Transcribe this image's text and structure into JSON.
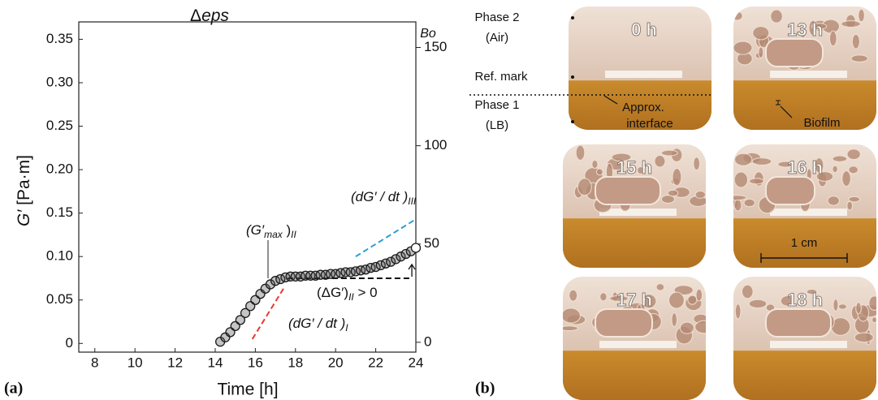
{
  "chart_data": {
    "type": "scatter",
    "title": [
      "Δ",
      "eps"
    ],
    "x_label": "Time [h]",
    "y_label": [
      "G′",
      " [Pa·m]"
    ],
    "y2_label": "Bo",
    "panel_label": "(a)",
    "xlim": [
      7.2,
      24
    ],
    "xticks": [
      8,
      10,
      12,
      14,
      16,
      18,
      20,
      22,
      24
    ],
    "ylim": [
      -0.01,
      0.37
    ],
    "yticks": [
      0,
      0.05,
      {
        "value": 0.1,
        "label": "0.10"
      },
      0.15,
      {
        "value": 0.2,
        "label": "0.20"
      },
      0.25,
      {
        "value": 0.3,
        "label": "0.30"
      },
      0.35
    ],
    "y2lim": [
      -5,
      163
    ],
    "y2ticks": [
      0,
      50,
      100,
      150
    ],
    "color": "#1a1a1a",
    "x": [
      14.25,
      14.5,
      14.75,
      15,
      15.25,
      15.5,
      15.75,
      16,
      16.25,
      16.5,
      16.75,
      17,
      17.25,
      17.5,
      17.75,
      18,
      18.25,
      18.5,
      18.75,
      19,
      19.25,
      19.5,
      19.75,
      20,
      20.25,
      20.5,
      20.75,
      21,
      21.25,
      21.5,
      21.75,
      22,
      22.25,
      22.5,
      22.75,
      23,
      23.25,
      23.5,
      23.75,
      24
    ],
    "values": [
      0.002,
      0.007,
      0.013,
      0.02,
      0.027,
      0.035,
      0.043,
      0.05,
      0.057,
      0.063,
      0.068,
      0.072,
      0.074,
      0.076,
      0.077,
      0.077,
      0.077,
      0.078,
      0.078,
      0.078,
      0.079,
      0.079,
      0.08,
      0.08,
      0.081,
      0.082,
      0.082,
      0.083,
      0.084,
      0.085,
      0.087,
      0.088,
      0.09,
      0.092,
      0.094,
      0.097,
      0.1,
      0.103,
      0.106,
      0.11
    ],
    "guides": [
      {
        "x": [
          15.85,
          17.4
        ],
        "y": [
          0.005,
          0.063
        ],
        "color": "#e8382b"
      },
      {
        "x": [
          21,
          24
        ],
        "y": [
          0.1,
          0.143
        ],
        "color": "#2a9fd4"
      },
      {
        "x": [
          17.6,
          23.8
        ],
        "y": [
          0.075,
          0.075
        ],
        "color": "#111111"
      }
    ],
    "annotations": {
      "gmax": [
        "(G′",
        "max",
        " )",
        "II"
      ],
      "dg3": [
        "(dG′ / dt )",
        "III"
      ],
      "delta": [
        "(ΔG′)",
        "II",
        " > 0"
      ],
      "dg1": [
        "(dG′ / dt )",
        "I"
      ]
    }
  },
  "photos": {
    "panel_label": "(b)",
    "frames": [
      "0 h",
      "13 h",
      "15 h",
      "16 h",
      "17 h",
      "18 h"
    ],
    "left_labels": [
      "Phase 2",
      "(Air)",
      "Ref. mark",
      "Phase 1",
      "(LB)"
    ],
    "notes": [
      "Approx.",
      "interface",
      "Biofilm",
      "1 cm"
    ]
  }
}
